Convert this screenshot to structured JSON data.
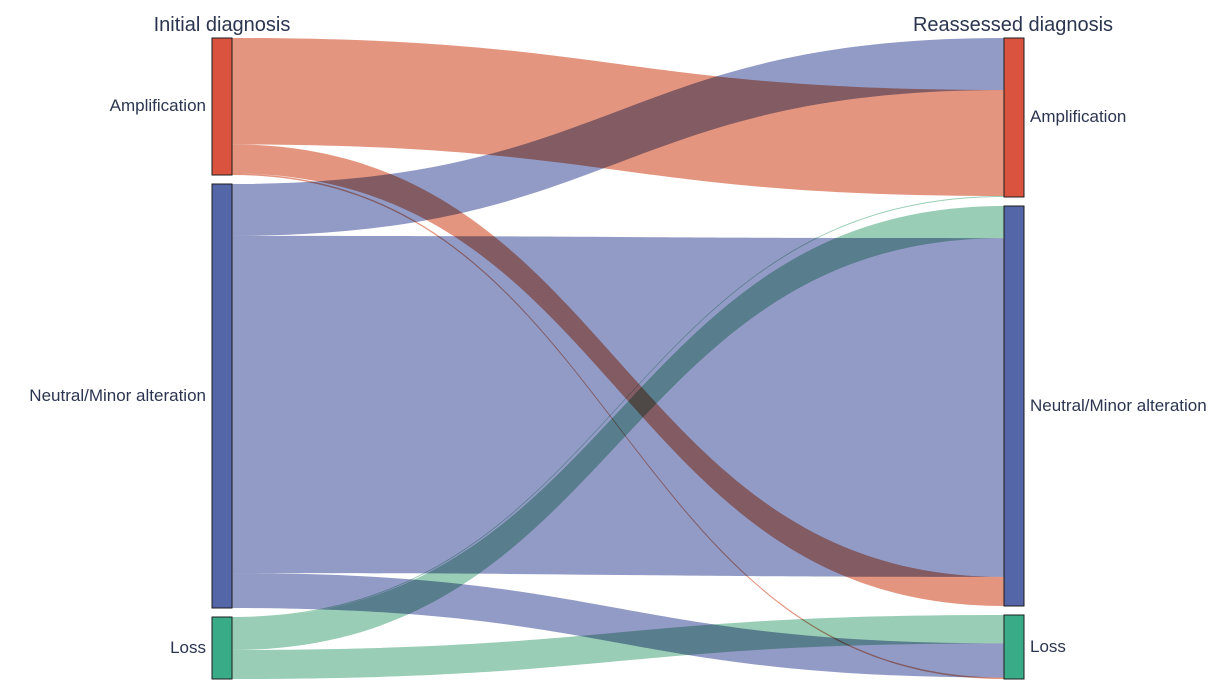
{
  "titles": {
    "left": "Initial diagnosis",
    "right": "Reassessed diagnosis"
  },
  "colors": {
    "amplification_node": "#d9533f",
    "neutral_node": "#5465a8",
    "loss_node": "#3aab87",
    "amplification_flow": "#e08a72",
    "neutral_flow": "#8690c0",
    "loss_flow": "#8ec8ad",
    "text": "#2b3550"
  },
  "nodes": {
    "initial": [
      {
        "id": "i_amp",
        "label": "Amplification",
        "color_key": "amplification"
      },
      {
        "id": "i_neu",
        "label": "Neutral/Minor alteration",
        "color_key": "neutral"
      },
      {
        "id": "i_loss",
        "label": "Loss",
        "color_key": "loss"
      }
    ],
    "reassessed": [
      {
        "id": "r_amp",
        "label": "Amplification",
        "color_key": "amplification"
      },
      {
        "id": "r_neu",
        "label": "Neutral/Minor alteration",
        "color_key": "neutral"
      },
      {
        "id": "r_loss",
        "label": "Loss",
        "color_key": "loss"
      }
    ]
  },
  "flows": [
    {
      "from": "Amplification",
      "to": "Amplification",
      "value": 106,
      "color_key": "amplification"
    },
    {
      "from": "Amplification",
      "to": "Neutral/Minor alteration",
      "value": 29,
      "color_key": "amplification"
    },
    {
      "from": "Amplification",
      "to": "Loss",
      "value": 1.5,
      "color_key": "amplification"
    },
    {
      "from": "Neutral/Minor alteration",
      "to": "Amplification",
      "value": 52,
      "color_key": "neutral"
    },
    {
      "from": "Neutral/Minor alteration",
      "to": "Neutral/Minor alteration",
      "value": 338,
      "color_key": "neutral"
    },
    {
      "from": "Neutral/Minor alteration",
      "to": "Loss",
      "value": 35,
      "color_key": "neutral"
    },
    {
      "from": "Loss",
      "to": "Amplification",
      "value": 1,
      "color_key": "loss"
    },
    {
      "from": "Loss",
      "to": "Neutral/Minor alteration",
      "value": 32,
      "color_key": "loss"
    },
    {
      "from": "Loss",
      "to": "Loss",
      "value": 29,
      "color_key": "loss"
    }
  ]
}
